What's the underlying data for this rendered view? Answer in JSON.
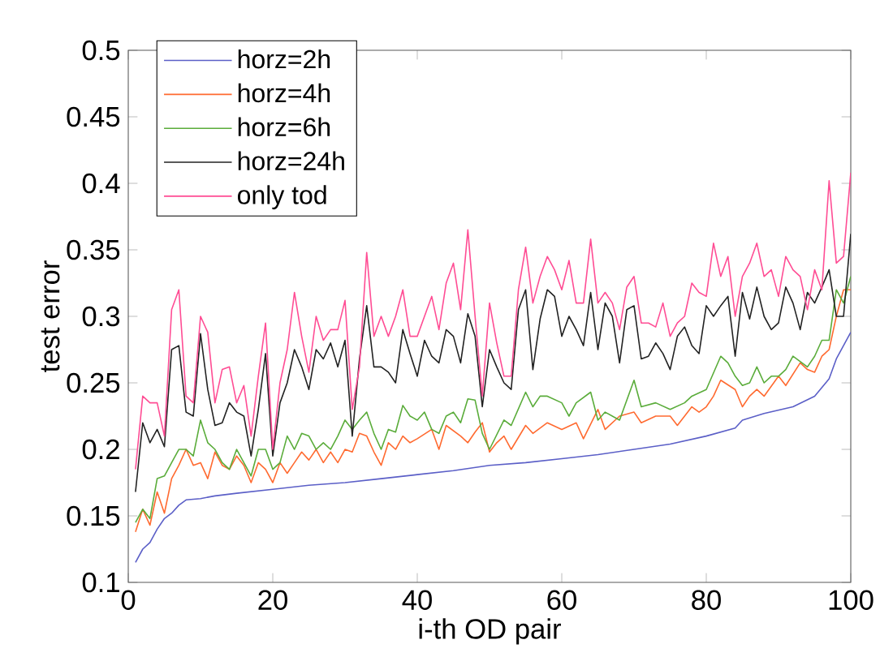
{
  "chart_data": {
    "type": "line",
    "xlabel": "i-th OD pair",
    "ylabel": "test error",
    "xlim": [
      0,
      100
    ],
    "ylim": [
      0.1,
      0.5
    ],
    "xticks": [
      0,
      20,
      40,
      60,
      80,
      100
    ],
    "yticks": [
      0.1,
      0.15,
      0.2,
      0.25,
      0.3,
      0.35,
      0.4,
      0.45,
      0.5
    ],
    "legend": "top left",
    "series": [
      {
        "name": "horz=2h",
        "color": "#5b5fc7",
        "x": [
          1,
          2,
          3,
          4,
          5,
          6,
          7,
          8,
          10,
          12,
          15,
          20,
          25,
          30,
          35,
          40,
          45,
          50,
          55,
          60,
          65,
          70,
          75,
          80,
          84,
          85,
          88,
          92,
          95,
          97,
          98,
          100
        ],
        "values": [
          0.115,
          0.125,
          0.13,
          0.14,
          0.148,
          0.152,
          0.158,
          0.162,
          0.163,
          0.165,
          0.167,
          0.17,
          0.173,
          0.175,
          0.178,
          0.181,
          0.184,
          0.188,
          0.19,
          0.193,
          0.196,
          0.2,
          0.204,
          0.21,
          0.216,
          0.222,
          0.227,
          0.232,
          0.24,
          0.253,
          0.268,
          0.288
        ]
      },
      {
        "name": "horz=4h",
        "color": "#ff6a30",
        "x": [
          1,
          2,
          3,
          4,
          5,
          6,
          7,
          8,
          9,
          10,
          11,
          12,
          13,
          14,
          15,
          16,
          17,
          18,
          19,
          20,
          21,
          22,
          23,
          24,
          25,
          26,
          27,
          28,
          29,
          30,
          31,
          32,
          33,
          34,
          35,
          36,
          37,
          38,
          39,
          40,
          42,
          43,
          44,
          46,
          47,
          48,
          49,
          50,
          51,
          52,
          53,
          55,
          56,
          58,
          60,
          62,
          63,
          65,
          66,
          68,
          70,
          71,
          73,
          75,
          76,
          78,
          79,
          80,
          81,
          82,
          84,
          85,
          86,
          87,
          88,
          90,
          91,
          93,
          94,
          95,
          96,
          97,
          98,
          99,
          100
        ],
        "values": [
          0.138,
          0.155,
          0.143,
          0.168,
          0.152,
          0.178,
          0.188,
          0.2,
          0.188,
          0.19,
          0.178,
          0.198,
          0.188,
          0.185,
          0.195,
          0.188,
          0.175,
          0.19,
          0.185,
          0.175,
          0.19,
          0.182,
          0.19,
          0.198,
          0.192,
          0.2,
          0.19,
          0.198,
          0.19,
          0.2,
          0.198,
          0.212,
          0.21,
          0.198,
          0.188,
          0.205,
          0.2,
          0.21,
          0.205,
          0.208,
          0.215,
          0.2,
          0.218,
          0.21,
          0.205,
          0.213,
          0.22,
          0.198,
          0.205,
          0.21,
          0.2,
          0.218,
          0.212,
          0.22,
          0.215,
          0.22,
          0.208,
          0.23,
          0.215,
          0.225,
          0.228,
          0.22,
          0.225,
          0.225,
          0.218,
          0.232,
          0.228,
          0.232,
          0.24,
          0.252,
          0.245,
          0.232,
          0.24,
          0.245,
          0.24,
          0.255,
          0.248,
          0.265,
          0.26,
          0.258,
          0.27,
          0.275,
          0.3,
          0.32,
          0.32
        ]
      },
      {
        "name": "horz=6h",
        "color": "#5aac3a",
        "x": [
          1,
          2,
          3,
          4,
          5,
          6,
          7,
          8,
          9,
          10,
          11,
          12,
          13,
          14,
          15,
          16,
          17,
          18,
          19,
          20,
          21,
          22,
          23,
          24,
          25,
          26,
          27,
          28,
          29,
          30,
          31,
          32,
          33,
          34,
          35,
          36,
          37,
          38,
          39,
          40,
          41,
          42,
          43,
          44,
          45,
          46,
          47,
          48,
          49,
          50,
          52,
          53,
          55,
          56,
          57,
          58,
          60,
          61,
          62,
          64,
          65,
          66,
          68,
          70,
          71,
          73,
          75,
          77,
          78,
          80,
          82,
          83,
          84,
          85,
          86,
          87,
          88,
          89,
          90,
          91,
          92,
          94,
          95,
          96,
          97,
          98,
          99,
          100
        ],
        "values": [
          0.145,
          0.155,
          0.148,
          0.178,
          0.18,
          0.19,
          0.2,
          0.2,
          0.195,
          0.222,
          0.205,
          0.2,
          0.19,
          0.185,
          0.2,
          0.19,
          0.18,
          0.2,
          0.2,
          0.185,
          0.19,
          0.21,
          0.2,
          0.212,
          0.21,
          0.2,
          0.205,
          0.2,
          0.21,
          0.222,
          0.215,
          0.222,
          0.228,
          0.212,
          0.2,
          0.215,
          0.213,
          0.233,
          0.225,
          0.222,
          0.228,
          0.215,
          0.212,
          0.225,
          0.228,
          0.22,
          0.238,
          0.237,
          0.212,
          0.2,
          0.222,
          0.218,
          0.243,
          0.232,
          0.24,
          0.24,
          0.235,
          0.225,
          0.235,
          0.243,
          0.222,
          0.228,
          0.222,
          0.252,
          0.232,
          0.235,
          0.23,
          0.235,
          0.24,
          0.245,
          0.27,
          0.265,
          0.255,
          0.248,
          0.25,
          0.262,
          0.25,
          0.255,
          0.255,
          0.26,
          0.27,
          0.262,
          0.27,
          0.282,
          0.282,
          0.32,
          0.31,
          0.33
        ]
      },
      {
        "name": "horz=24h",
        "color": "#222222",
        "x": [
          1,
          2,
          3,
          4,
          5,
          6,
          7,
          8,
          9,
          10,
          11,
          12,
          13,
          14,
          15,
          16,
          17,
          18,
          19,
          20,
          21,
          22,
          23,
          24,
          25,
          26,
          27,
          28,
          29,
          30,
          31,
          32,
          33,
          34,
          35,
          36,
          37,
          38,
          39,
          40,
          41,
          42,
          43,
          44,
          45,
          46,
          47,
          48,
          49,
          50,
          51,
          52,
          53,
          54,
          55,
          56,
          57,
          58,
          59,
          60,
          61,
          62,
          63,
          64,
          65,
          66,
          67,
          68,
          69,
          70,
          71,
          72,
          73,
          74,
          75,
          76,
          77,
          78,
          79,
          80,
          81,
          82,
          83,
          84,
          85,
          86,
          87,
          88,
          89,
          90,
          91,
          92,
          93,
          94,
          95,
          96,
          97,
          98,
          99,
          100
        ],
        "values": [
          0.168,
          0.22,
          0.205,
          0.215,
          0.202,
          0.275,
          0.278,
          0.228,
          0.225,
          0.287,
          0.245,
          0.218,
          0.22,
          0.235,
          0.228,
          0.225,
          0.195,
          0.23,
          0.272,
          0.195,
          0.235,
          0.25,
          0.275,
          0.262,
          0.245,
          0.275,
          0.268,
          0.28,
          0.262,
          0.282,
          0.21,
          0.268,
          0.308,
          0.262,
          0.262,
          0.258,
          0.25,
          0.29,
          0.272,
          0.255,
          0.282,
          0.27,
          0.265,
          0.29,
          0.285,
          0.265,
          0.302,
          0.285,
          0.232,
          0.275,
          0.262,
          0.25,
          0.245,
          0.305,
          0.32,
          0.26,
          0.298,
          0.32,
          0.315,
          0.285,
          0.3,
          0.29,
          0.278,
          0.318,
          0.275,
          0.31,
          0.3,
          0.265,
          0.305,
          0.308,
          0.268,
          0.27,
          0.28,
          0.272,
          0.26,
          0.285,
          0.292,
          0.278,
          0.272,
          0.308,
          0.3,
          0.308,
          0.315,
          0.27,
          0.318,
          0.298,
          0.322,
          0.3,
          0.29,
          0.295,
          0.322,
          0.31,
          0.29,
          0.318,
          0.31,
          0.322,
          0.335,
          0.3,
          0.3,
          0.362
        ]
      },
      {
        "name": "only tod",
        "color": "#ff4d94",
        "x": [
          1,
          2,
          3,
          4,
          5,
          6,
          7,
          8,
          9,
          10,
          11,
          12,
          13,
          14,
          15,
          16,
          17,
          18,
          19,
          20,
          21,
          22,
          23,
          24,
          25,
          26,
          27,
          28,
          29,
          30,
          31,
          32,
          33,
          34,
          35,
          36,
          37,
          38,
          39,
          40,
          41,
          42,
          43,
          44,
          45,
          46,
          47,
          48,
          49,
          50,
          51,
          52,
          53,
          54,
          55,
          56,
          57,
          58,
          59,
          60,
          61,
          62,
          63,
          64,
          65,
          66,
          67,
          68,
          69,
          70,
          71,
          72,
          73,
          74,
          75,
          76,
          77,
          78,
          79,
          80,
          81,
          82,
          83,
          84,
          85,
          86,
          87,
          88,
          89,
          90,
          91,
          92,
          93,
          94,
          95,
          96,
          97,
          98,
          99,
          100
        ],
        "values": [
          0.185,
          0.24,
          0.235,
          0.235,
          0.21,
          0.305,
          0.32,
          0.24,
          0.235,
          0.3,
          0.288,
          0.235,
          0.26,
          0.262,
          0.235,
          0.248,
          0.21,
          0.255,
          0.295,
          0.2,
          0.25,
          0.275,
          0.318,
          0.285,
          0.258,
          0.3,
          0.282,
          0.29,
          0.29,
          0.312,
          0.23,
          0.262,
          0.348,
          0.285,
          0.3,
          0.285,
          0.3,
          0.32,
          0.285,
          0.285,
          0.3,
          0.315,
          0.29,
          0.325,
          0.34,
          0.305,
          0.365,
          0.3,
          0.24,
          0.31,
          0.28,
          0.255,
          0.255,
          0.32,
          0.352,
          0.31,
          0.33,
          0.345,
          0.335,
          0.32,
          0.342,
          0.31,
          0.31,
          0.358,
          0.31,
          0.318,
          0.31,
          0.29,
          0.322,
          0.33,
          0.295,
          0.295,
          0.292,
          0.31,
          0.285,
          0.295,
          0.3,
          0.325,
          0.318,
          0.315,
          0.355,
          0.33,
          0.345,
          0.3,
          0.33,
          0.34,
          0.355,
          0.33,
          0.335,
          0.315,
          0.345,
          0.335,
          0.33,
          0.305,
          0.335,
          0.32,
          0.402,
          0.34,
          0.345,
          0.408
        ]
      }
    ]
  }
}
